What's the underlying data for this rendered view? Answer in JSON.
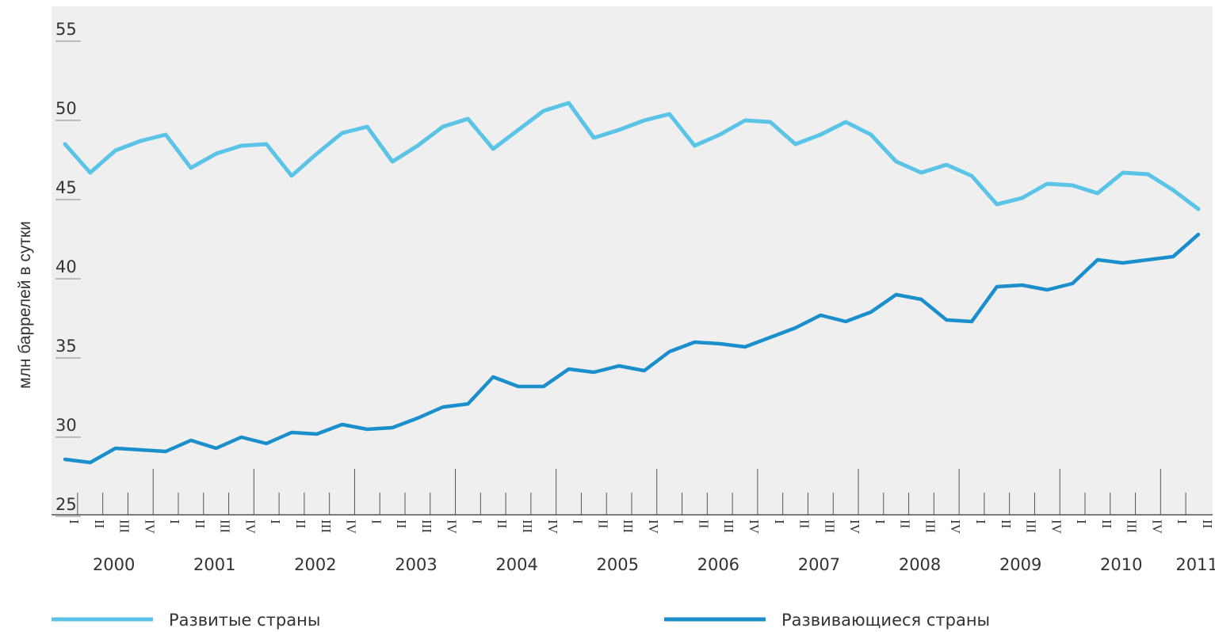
{
  "chart_data": {
    "type": "line",
    "y_label": "млн баррелей в сутки",
    "categories": [
      "I",
      "II",
      "III",
      "IV",
      "I",
      "II",
      "III",
      "IV",
      "I",
      "II",
      "III",
      "IV",
      "I",
      "II",
      "III",
      "IV",
      "I",
      "II",
      "III",
      "IV",
      "I",
      "II",
      "III",
      "IV",
      "I",
      "II",
      "III",
      "IV",
      "I",
      "II",
      "III",
      "IV",
      "I",
      "II",
      "III",
      "IV",
      "I",
      "II",
      "III",
      "IV",
      "I",
      "II",
      "III",
      "IV",
      "I",
      "II"
    ],
    "years": [
      "2000",
      "2001",
      "2002",
      "2003",
      "2004",
      "2005",
      "2006",
      "2007",
      "2008",
      "2009",
      "2010",
      "2011"
    ],
    "series": [
      {
        "name": "Развитые страны",
        "color": "#5bc4e6",
        "values": [
          48.5,
          46.7,
          48.1,
          48.7,
          49.1,
          47.0,
          47.9,
          48.4,
          48.5,
          46.5,
          47.9,
          49.2,
          49.6,
          47.4,
          48.4,
          49.6,
          50.1,
          48.2,
          49.4,
          50.6,
          51.1,
          48.9,
          49.4,
          50.0,
          50.4,
          48.4,
          49.1,
          50.0,
          49.9,
          48.5,
          49.1,
          49.9,
          49.1,
          47.4,
          46.7,
          47.2,
          46.5,
          44.7,
          45.1,
          46.0,
          45.9,
          45.4,
          46.7,
          46.6,
          45.6,
          44.4
        ]
      },
      {
        "name": "Развивающиеся страны",
        "color": "#1a8fcc",
        "values": [
          28.6,
          28.4,
          29.3,
          29.2,
          29.1,
          29.8,
          29.3,
          30.0,
          29.6,
          30.3,
          30.2,
          30.8,
          30.5,
          30.6,
          31.2,
          31.9,
          32.1,
          33.8,
          33.2,
          33.2,
          34.3,
          34.1,
          34.5,
          34.2,
          35.4,
          36.0,
          35.9,
          35.7,
          36.3,
          36.9,
          37.7,
          37.3,
          37.9,
          39.0,
          38.7,
          37.4,
          37.3,
          39.5,
          39.6,
          39.3,
          39.7,
          41.2,
          41.0,
          41.2,
          41.4,
          42.8
        ]
      }
    ],
    "ylim": [
      25,
      57
    ],
    "yticks": [
      55,
      50,
      45,
      40,
      35,
      30,
      25
    ]
  }
}
